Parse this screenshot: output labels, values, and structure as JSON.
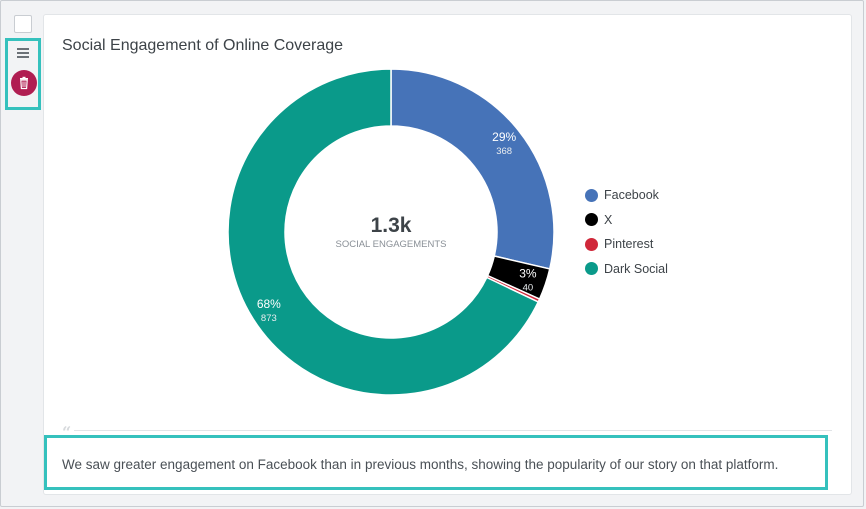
{
  "card": {
    "title": "Social Engagement of Online Coverage"
  },
  "chart_data": {
    "type": "pie",
    "subtype": "donut",
    "title": "Social Engagement of Online Coverage",
    "center_value": "1.3k",
    "center_label": "SOCIAL ENGAGEMENTS",
    "legend_position": "right",
    "slices": [
      {
        "name": "Facebook",
        "value": 368,
        "percent_label": "29%",
        "value_label": "368",
        "color": "#4673b8"
      },
      {
        "name": "X",
        "value": 40,
        "percent_label": "3%",
        "value_label": "40",
        "color": "#000000"
      },
      {
        "name": "Pinterest",
        "value": 4,
        "percent_label": "",
        "value_label": "",
        "color": "#d0283a"
      },
      {
        "name": "Dark Social",
        "value": 873,
        "percent_label": "68%",
        "value_label": "873",
        "color": "#0a9a8a"
      }
    ]
  },
  "comment": {
    "quote_mark": "“",
    "text": "We saw greater engagement on Facebook than in previous months, showing the popularity of our story on that platform."
  },
  "icons": {
    "menu": "hamburger-menu-icon",
    "delete": "trash-icon"
  },
  "colors": {
    "highlight": "#35c1bd",
    "delete_button": "#b01e52"
  }
}
